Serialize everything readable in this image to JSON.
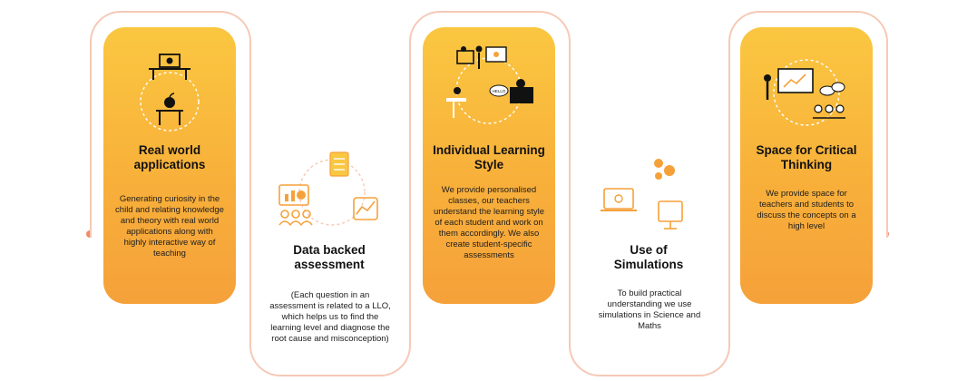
{
  "steps": [
    {
      "title": "Real world applications",
      "desc": "Generating curiosity in the child and relating knowledge and theory with real world applications along with highly interactive way of teaching",
      "icon": "classroom-apple-icon"
    },
    {
      "title": "Data backed assessment",
      "desc": "(Each question in an assessment is related to a LLO, which helps us to find the learning level and diagnose the root cause and misconception)",
      "icon": "analytics-cycle-icon"
    },
    {
      "title": "Individual Learning Style",
      "desc": "We provide personalised classes, our teachers understand the learning style of each student and work on them accordingly. We also create student-specific assessments",
      "icon": "teacher-student-cycle-icon"
    },
    {
      "title": "Use of Simulations",
      "desc": "To build practical understanding we use simulations in Science and Maths",
      "icon": "simulation-icon"
    },
    {
      "title": "Space for Critical Thinking",
      "desc": "We provide space for teachers and students to discuss the concepts on a high level",
      "icon": "discussion-icon"
    }
  ],
  "bubble_text": "HELLO",
  "colors": {
    "card_top": "#fac741",
    "card_bottom": "#f5a13a",
    "frame": "#f6c9b6",
    "dot": "#f28a6b",
    "icon_white": "#ffffff"
  }
}
